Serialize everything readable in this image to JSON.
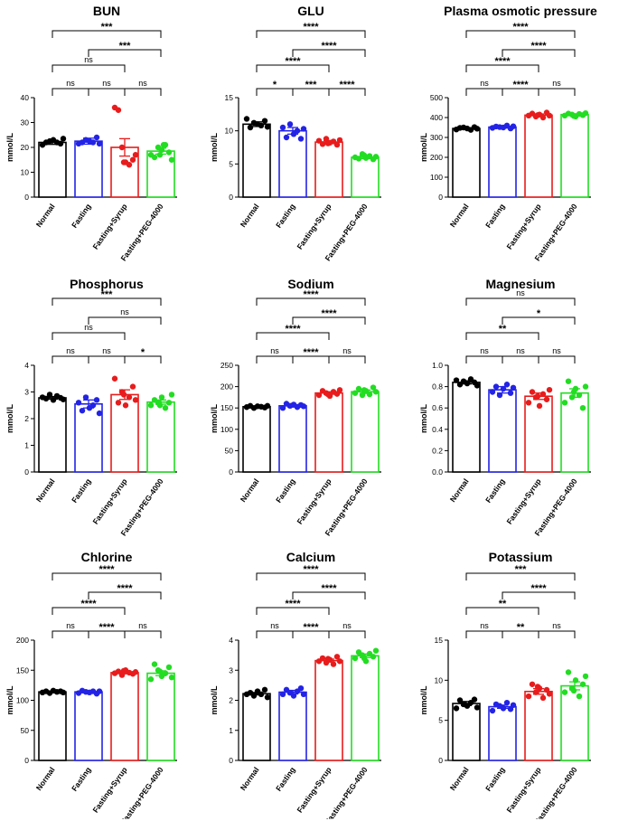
{
  "chart_data": [
    {
      "type": "bar",
      "title": "BUN",
      "ylabel": "mmol/L",
      "categories": [
        "Normal",
        "Fasting",
        "Fasting+Syrup",
        "Fasting+PEG-4000"
      ],
      "colors": [
        "#000000",
        "#2323e6",
        "#e81c1c",
        "#22dd22"
      ],
      "values": [
        22,
        22.5,
        20,
        18.5
      ],
      "errors": [
        0.8,
        1.2,
        3.5,
        1.2
      ],
      "points": [
        [
          21,
          22,
          22.5,
          23,
          22,
          21.5,
          23.5
        ],
        [
          21.5,
          22,
          23,
          22.5,
          22,
          24,
          21.5
        ],
        [
          36,
          35,
          20,
          14,
          13,
          15,
          17,
          14
        ],
        [
          17,
          16,
          20,
          19,
          21,
          18,
          15,
          17,
          21
        ]
      ],
      "ylim": [
        0,
        40
      ],
      "ticks": [
        0,
        10,
        20,
        30,
        40
      ],
      "comparisons": [
        {
          "from": 0,
          "to": 1,
          "label": "ns"
        },
        {
          "from": 1,
          "to": 2,
          "label": "ns"
        },
        {
          "from": 2,
          "to": 3,
          "label": "ns"
        },
        {
          "from": 0,
          "to": 2,
          "label": "ns"
        },
        {
          "from": 1,
          "to": 3,
          "label": "***"
        },
        {
          "from": 0,
          "to": 3,
          "label": "***"
        }
      ]
    },
    {
      "type": "bar",
      "title": "GLU",
      "ylabel": "mmol/L",
      "categories": [
        "Normal",
        "Fasting",
        "Fasting+Syrup",
        "Fasting+PEG-4000"
      ],
      "colors": [
        "#000000",
        "#2323e6",
        "#e81c1c",
        "#22dd22"
      ],
      "values": [
        11,
        10,
        8.3,
        6
      ],
      "errors": [
        0.35,
        0.5,
        0.2,
        0.2
      ],
      "points": [
        [
          11.8,
          10.5,
          11.2,
          11,
          10.8,
          11.5,
          10.6
        ],
        [
          10.5,
          9,
          11,
          9.5,
          10,
          8.8,
          10.3
        ],
        [
          8.5,
          8,
          8.8,
          8.2,
          8.4,
          7.9,
          8.6,
          8.1
        ],
        [
          6,
          5.8,
          6.5,
          5.9,
          6.2,
          5.7,
          6.1,
          6.3
        ]
      ],
      "ylim": [
        0,
        15
      ],
      "ticks": [
        0,
        5,
        10,
        15
      ],
      "comparisons": [
        {
          "from": 0,
          "to": 1,
          "label": "*"
        },
        {
          "from": 1,
          "to": 2,
          "label": "***"
        },
        {
          "from": 2,
          "to": 3,
          "label": "****"
        },
        {
          "from": 0,
          "to": 2,
          "label": "****"
        },
        {
          "from": 1,
          "to": 3,
          "label": "****"
        },
        {
          "from": 0,
          "to": 3,
          "label": "****"
        }
      ]
    },
    {
      "type": "bar",
      "title": "Plasma osmotic pressure",
      "ylabel": "mmol/L",
      "categories": [
        "Normal",
        "Fasting",
        "Fasting+Syrup",
        "Fasting+PEG-4000"
      ],
      "colors": [
        "#000000",
        "#2323e6",
        "#e81c1c",
        "#22dd22"
      ],
      "values": [
        345,
        352,
        412,
        415
      ],
      "errors": [
        4,
        5,
        6,
        4
      ],
      "points": [
        [
          340,
          348,
          350,
          345,
          338,
          352,
          344
        ],
        [
          348,
          355,
          352,
          350,
          360,
          345,
          356
        ],
        [
          410,
          420,
          405,
          415,
          400,
          425,
          410,
          412
        ],
        [
          410,
          420,
          415,
          405,
          418,
          412,
          422,
          408
        ]
      ],
      "ylim": [
        0,
        500
      ],
      "ticks": [
        0,
        100,
        200,
        300,
        400,
        500
      ],
      "comparisons": [
        {
          "from": 0,
          "to": 1,
          "label": "ns"
        },
        {
          "from": 1,
          "to": 2,
          "label": "****"
        },
        {
          "from": 2,
          "to": 3,
          "label": "ns"
        },
        {
          "from": 0,
          "to": 2,
          "label": "****"
        },
        {
          "from": 1,
          "to": 3,
          "label": "****"
        },
        {
          "from": 0,
          "to": 3,
          "label": "****"
        }
      ]
    },
    {
      "type": "bar",
      "title": "Phosphorus",
      "ylabel": "mmol/L",
      "categories": [
        "Normal",
        "Fasting",
        "Fasting+Syrup",
        "Fasting+PEG-4000"
      ],
      "colors": [
        "#000000",
        "#2323e6",
        "#e81c1c",
        "#22dd22"
      ],
      "values": [
        2.78,
        2.55,
        2.9,
        2.62
      ],
      "errors": [
        0.05,
        0.15,
        0.18,
        0.08
      ],
      "points": [
        [
          2.8,
          2.75,
          2.9,
          2.7,
          2.85,
          2.78,
          2.72
        ],
        [
          2.6,
          2.3,
          2.8,
          2.4,
          2.5,
          2.7,
          2.2
        ],
        [
          3.5,
          2.6,
          3.0,
          2.5,
          2.8,
          3.2,
          2.7,
          2.9
        ],
        [
          2.5,
          2.7,
          2.6,
          2.8,
          2.4,
          2.6,
          2.9,
          2.5
        ]
      ],
      "ylim": [
        0,
        4
      ],
      "ticks": [
        0,
        1,
        2,
        3,
        4
      ],
      "comparisons": [
        {
          "from": 0,
          "to": 1,
          "label": "ns"
        },
        {
          "from": 1,
          "to": 2,
          "label": "ns"
        },
        {
          "from": 2,
          "to": 3,
          "label": "*"
        },
        {
          "from": 0,
          "to": 2,
          "label": "ns"
        },
        {
          "from": 1,
          "to": 3,
          "label": "ns"
        },
        {
          "from": 0,
          "to": 3,
          "label": "***"
        }
      ]
    },
    {
      "type": "bar",
      "title": "Sodium",
      "ylabel": "mmol/L",
      "categories": [
        "Normal",
        "Fasting",
        "Fasting+Syrup",
        "Fasting+PEG-4000"
      ],
      "colors": [
        "#000000",
        "#2323e6",
        "#e81c1c",
        "#22dd22"
      ],
      "values": [
        153,
        155,
        185,
        188
      ],
      "errors": [
        1.5,
        3,
        3,
        4
      ],
      "points": [
        [
          152,
          155,
          150,
          154,
          153,
          151,
          155
        ],
        [
          150,
          160,
          155,
          158,
          152,
          157,
          154
        ],
        [
          180,
          190,
          185,
          178,
          188,
          183,
          192,
          182
        ],
        [
          185,
          195,
          180,
          190,
          182,
          198,
          188,
          192
        ]
      ],
      "ylim": [
        0,
        250
      ],
      "ticks": [
        0,
        50,
        100,
        150,
        200,
        250
      ],
      "comparisons": [
        {
          "from": 0,
          "to": 1,
          "label": "ns"
        },
        {
          "from": 1,
          "to": 2,
          "label": "****"
        },
        {
          "from": 2,
          "to": 3,
          "label": "ns"
        },
        {
          "from": 0,
          "to": 2,
          "label": "****"
        },
        {
          "from": 1,
          "to": 3,
          "label": "****"
        },
        {
          "from": 0,
          "to": 3,
          "label": "****"
        }
      ]
    },
    {
      "type": "bar",
      "title": "Magnesium",
      "ylabel": "mmol/L",
      "categories": [
        "Normal",
        "Fasting",
        "Fasting+Syrup",
        "Fasting+PEG-4000"
      ],
      "colors": [
        "#000000",
        "#2323e6",
        "#e81c1c",
        "#22dd22"
      ],
      "values": [
        0.84,
        0.77,
        0.71,
        0.74
      ],
      "errors": [
        0.015,
        0.03,
        0.03,
        0.04
      ],
      "points": [
        [
          0.86,
          0.82,
          0.85,
          0.83,
          0.87,
          0.84,
          0.81
        ],
        [
          0.75,
          0.8,
          0.72,
          0.78,
          0.82,
          0.74,
          0.79
        ],
        [
          0.65,
          0.75,
          0.7,
          0.62,
          0.73,
          0.68,
          0.77,
          0.71
        ],
        [
          0.65,
          0.85,
          0.7,
          0.78,
          0.72,
          0.6,
          0.8,
          0.75
        ]
      ],
      "ylim": [
        0,
        1.0
      ],
      "ticks": [
        0,
        0.2,
        0.4,
        0.6,
        0.8,
        1.0
      ],
      "comparisons": [
        {
          "from": 0,
          "to": 1,
          "label": "ns"
        },
        {
          "from": 1,
          "to": 2,
          "label": "ns"
        },
        {
          "from": 2,
          "to": 3,
          "label": "ns"
        },
        {
          "from": 0,
          "to": 2,
          "label": "**"
        },
        {
          "from": 1,
          "to": 3,
          "label": "*"
        },
        {
          "from": 0,
          "to": 3,
          "label": "ns"
        }
      ]
    },
    {
      "type": "bar",
      "title": "Chlorine",
      "ylabel": "mmol/L",
      "categories": [
        "Normal",
        "Fasting",
        "Fasting+Syrup",
        "Fasting+PEG-4000"
      ],
      "colors": [
        "#000000",
        "#2323e6",
        "#e81c1c",
        "#22dd22"
      ],
      "values": [
        114,
        114,
        146,
        145
      ],
      "errors": [
        1.5,
        1.5,
        2,
        4
      ],
      "points": [
        [
          113,
          115,
          112,
          116,
          114,
          115,
          113
        ],
        [
          112,
          116,
          114,
          113,
          115,
          111,
          115
        ],
        [
          145,
          148,
          142,
          150,
          146,
          144,
          147,
          149
        ],
        [
          135,
          160,
          150,
          140,
          145,
          155,
          138,
          148
        ]
      ],
      "ylim": [
        0,
        200
      ],
      "ticks": [
        0,
        50,
        100,
        150,
        200
      ],
      "comparisons": [
        {
          "from": 0,
          "to": 1,
          "label": "ns"
        },
        {
          "from": 1,
          "to": 2,
          "label": "****"
        },
        {
          "from": 2,
          "to": 3,
          "label": "ns"
        },
        {
          "from": 0,
          "to": 2,
          "label": "****"
        },
        {
          "from": 1,
          "to": 3,
          "label": "****"
        },
        {
          "from": 0,
          "to": 3,
          "label": "****"
        }
      ]
    },
    {
      "type": "bar",
      "title": "Calcium",
      "ylabel": "mmol/L",
      "categories": [
        "Normal",
        "Fasting",
        "Fasting+Syrup",
        "Fasting+PEG-4000"
      ],
      "colors": [
        "#000000",
        "#2323e6",
        "#e81c1c",
        "#22dd22"
      ],
      "values": [
        2.22,
        2.27,
        3.32,
        3.48
      ],
      "errors": [
        0.04,
        0.06,
        0.05,
        0.06
      ],
      "points": [
        [
          2.2,
          2.25,
          2.15,
          2.3,
          2.2,
          2.35,
          2.1
        ],
        [
          2.2,
          2.35,
          2.25,
          2.15,
          2.3,
          2.4,
          2.2
        ],
        [
          3.3,
          3.4,
          3.25,
          3.35,
          3.2,
          3.45,
          3.3,
          3.38
        ],
        [
          3.4,
          3.6,
          3.5,
          3.3,
          3.55,
          3.45,
          3.65,
          3.4
        ]
      ],
      "ylim": [
        0,
        4
      ],
      "ticks": [
        0,
        1,
        2,
        3,
        4
      ],
      "comparisons": [
        {
          "from": 0,
          "to": 1,
          "label": "ns"
        },
        {
          "from": 1,
          "to": 2,
          "label": "****"
        },
        {
          "from": 2,
          "to": 3,
          "label": "ns"
        },
        {
          "from": 0,
          "to": 2,
          "label": "****"
        },
        {
          "from": 1,
          "to": 3,
          "label": "****"
        },
        {
          "from": 0,
          "to": 3,
          "label": "****"
        }
      ]
    },
    {
      "type": "bar",
      "title": "Potassium",
      "ylabel": "mmol/L",
      "categories": [
        "Normal",
        "Fasting",
        "Fasting+Syrup",
        "Fasting+PEG-4000"
      ],
      "colors": [
        "#000000",
        "#2323e6",
        "#e81c1c",
        "#22dd22"
      ],
      "values": [
        7.1,
        6.7,
        8.6,
        9.3
      ],
      "errors": [
        0.25,
        0.2,
        0.35,
        0.5
      ],
      "points": [
        [
          6.5,
          7.5,
          7.0,
          6.8,
          7.2,
          7.6,
          6.6
        ],
        [
          6.2,
          7.0,
          6.8,
          6.5,
          7.2,
          6.4,
          6.9
        ],
        [
          8.0,
          9.5,
          8.5,
          9.0,
          7.8,
          8.8,
          8.3,
          9.2
        ],
        [
          8.5,
          11.0,
          9.0,
          10.0,
          8.0,
          9.5,
          10.5,
          8.7
        ]
      ],
      "ylim": [
        0,
        15
      ],
      "ticks": [
        0,
        5,
        10,
        15
      ],
      "comparisons": [
        {
          "from": 0,
          "to": 1,
          "label": "ns"
        },
        {
          "from": 1,
          "to": 2,
          "label": "**"
        },
        {
          "from": 2,
          "to": 3,
          "label": "ns"
        },
        {
          "from": 0,
          "to": 2,
          "label": "**"
        },
        {
          "from": 1,
          "to": 3,
          "label": "****"
        },
        {
          "from": 0,
          "to": 3,
          "label": "***"
        }
      ]
    }
  ]
}
